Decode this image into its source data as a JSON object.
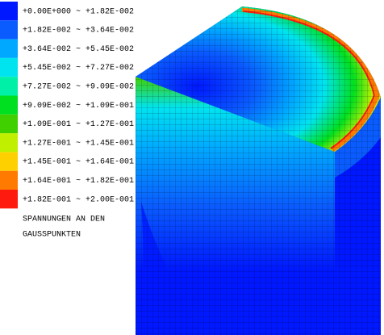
{
  "legend": {
    "entries": [
      {
        "label": "+0.00E+000 ~ +1.82E-002",
        "color": "#0018ff"
      },
      {
        "label": "+1.82E-002 ~ +3.64E-002",
        "color": "#0a5cff"
      },
      {
        "label": "+3.64E-002 ~ +5.45E-002",
        "color": "#00a8ff"
      },
      {
        "label": "+5.45E-002 ~ +7.27E-002",
        "color": "#00e4f0"
      },
      {
        "label": "+7.27E-002 ~ +9.09E-002",
        "color": "#00f0a8"
      },
      {
        "label": "+9.09E-002 ~ +1.09E-001",
        "color": "#00e020"
      },
      {
        "label": "+1.09E-001 ~ +1.27E-001",
        "color": "#40d000"
      },
      {
        "label": "+1.27E-001 ~ +1.45E-001",
        "color": "#c0f000"
      },
      {
        "label": "+1.45E-001 ~ +1.64E-001",
        "color": "#ffd000"
      },
      {
        "label": "+1.64E-001 ~ +1.82E-001",
        "color": "#ff7a00"
      },
      {
        "label": "+1.82E-001 ~ +2.00E-001",
        "color": "#ff1a10"
      }
    ]
  },
  "caption": [
    "SPANNUNGEN AN DEN",
    "GAUSSPUNKTEN"
  ]
}
